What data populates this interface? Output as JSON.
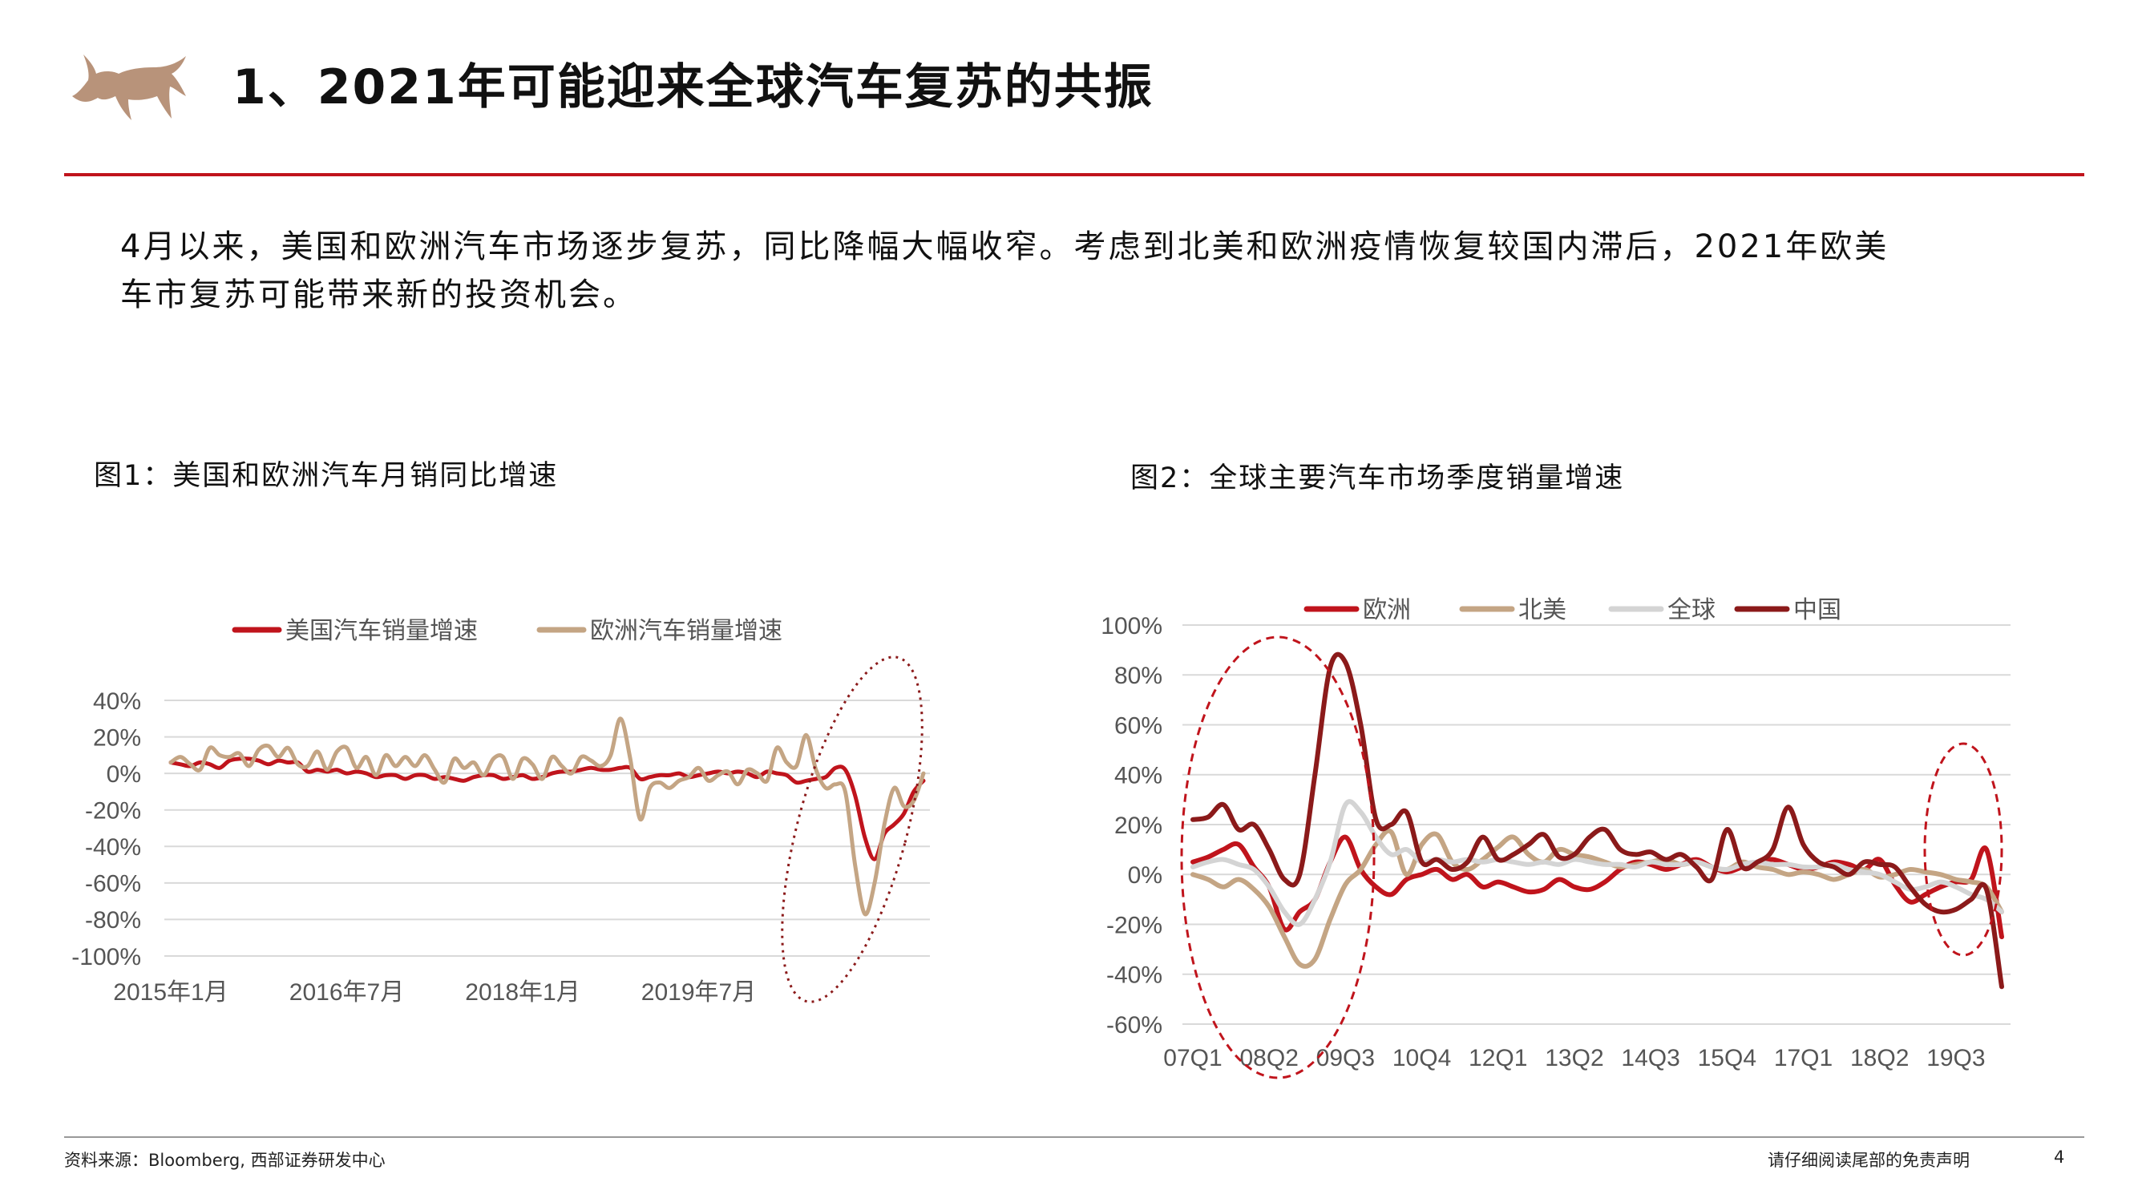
{
  "header": {
    "title": "1、2021年可能迎来全球汽车复苏的共振",
    "logo_color": "#b8937a"
  },
  "paragraph": {
    "line1": "4月以来，美国和欧洲汽车市场逐步复苏，同比降幅大幅收窄。考虑到北美和欧洲疫情恢复较国内滞后，2021年欧美",
    "line2": "车市复苏可能带来新的投资机会。"
  },
  "figure1": {
    "title": "图1：美国和欧洲汽车月销同比增速"
  },
  "figure2": {
    "title": "图2：全球主要汽车市场季度销量增速"
  },
  "footer": {
    "source": "资料来源：Bloomberg,  西部证券研发中心",
    "disclaimer": "请仔细阅读尾部的免责声明",
    "page_number": "4"
  },
  "colors": {
    "accent": "#c0141c",
    "gold": "#c4a584",
    "lightgray": "#d4d4d4",
    "darkred": "#8b1a1a"
  },
  "chart_data": [
    {
      "type": "line",
      "ylim": [
        -100,
        40
      ],
      "yticks": [
        40,
        20,
        0,
        -20,
        -40,
        -60,
        -80,
        -100
      ],
      "ytick_labels": [
        "40%",
        "20%",
        "0%",
        "-20%",
        "-40%",
        "-60%",
        "-80%",
        "-100%"
      ],
      "x_count": 78,
      "x_tick_labels": [
        {
          "index": 0,
          "label": "2015年1月"
        },
        {
          "index": 18,
          "label": "2016年7月"
        },
        {
          "index": 36,
          "label": "2018年1月"
        },
        {
          "index": 54,
          "label": "2019年7月"
        }
      ],
      "legend_position": "top",
      "grid": true,
      "series": [
        {
          "name": "美国汽车销量增速",
          "color": "#c0141c",
          "values": [
            6,
            5,
            4,
            6,
            5,
            3,
            7,
            8,
            8,
            7,
            5,
            7,
            6,
            6,
            1,
            2,
            1,
            2,
            0,
            1,
            0,
            -2,
            -1,
            -1,
            -3,
            -1,
            -1,
            -3,
            -2,
            -3,
            -4,
            -2,
            -1,
            -1,
            -3,
            -2,
            -1,
            -3,
            -2,
            0,
            1,
            1,
            2,
            3,
            2,
            2,
            3,
            3,
            -3,
            -2,
            -1,
            -1,
            0,
            -2,
            -1,
            0,
            1,
            0,
            1,
            0,
            -2,
            1,
            0,
            -1,
            -5,
            -4,
            -3,
            -2,
            3,
            2,
            -12,
            -35,
            -47,
            -33,
            -28,
            -22,
            -10,
            -4
          ]
        },
        {
          "name": "欧洲汽车销量增速",
          "color": "#c4a584",
          "values": [
            6,
            9,
            5,
            2,
            14,
            10,
            9,
            11,
            4,
            13,
            15,
            9,
            14,
            5,
            4,
            12,
            2,
            12,
            14,
            3,
            9,
            -1,
            10,
            4,
            9,
            4,
            10,
            2,
            -5,
            8,
            3,
            6,
            -1,
            8,
            9,
            -3,
            8,
            5,
            -3,
            9,
            4,
            0,
            9,
            7,
            4,
            10,
            30,
            8,
            -25,
            -8,
            -5,
            -8,
            -4,
            -2,
            3,
            -4,
            -1,
            1,
            -6,
            2,
            0,
            -4,
            14,
            6,
            4,
            21,
            2,
            -8,
            -6,
            -10,
            -50,
            -77,
            -60,
            -28,
            -8,
            -18,
            -15,
            0
          ]
        }
      ]
    },
    {
      "type": "line",
      "ylim": [
        -60,
        100
      ],
      "yticks": [
        100,
        80,
        60,
        40,
        20,
        0,
        -20,
        -40,
        -60
      ],
      "ytick_labels": [
        "100%",
        "80%",
        "60%",
        "40%",
        "20%",
        "0%",
        "-20%",
        "-40%",
        "-60%"
      ],
      "x_count": 54,
      "x_tick_labels": [
        {
          "index": 0,
          "label": "07Q1"
        },
        {
          "index": 5,
          "label": "08Q2"
        },
        {
          "index": 10,
          "label": "09Q3"
        },
        {
          "index": 15,
          "label": "10Q4"
        },
        {
          "index": 20,
          "label": "12Q1"
        },
        {
          "index": 25,
          "label": "13Q2"
        },
        {
          "index": 30,
          "label": "14Q3"
        },
        {
          "index": 35,
          "label": "15Q4"
        },
        {
          "index": 40,
          "label": "17Q1"
        },
        {
          "index": 45,
          "label": "18Q2"
        },
        {
          "index": 50,
          "label": "19Q3"
        }
      ],
      "legend_position": "top",
      "grid": true,
      "series": [
        {
          "name": "欧洲",
          "color": "#c0141c",
          "values": [
            5,
            7,
            10,
            12,
            3,
            -5,
            -22,
            -15,
            -10,
            5,
            15,
            2,
            -5,
            -8,
            -2,
            0,
            2,
            -2,
            0,
            -5,
            -3,
            -5,
            -7,
            -6,
            -2,
            -5,
            -6,
            -3,
            2,
            5,
            4,
            2,
            4,
            6,
            3,
            1,
            3,
            5,
            6,
            4,
            2,
            3,
            5,
            4,
            2,
            6,
            -4,
            -11,
            -8,
            -5,
            -3,
            -2,
            10,
            -25
          ]
        },
        {
          "name": "北美",
          "color": "#c4a584",
          "values": [
            0,
            -2,
            -5,
            -2,
            -6,
            -13,
            -25,
            -36,
            -34,
            -18,
            -4,
            2,
            12,
            17,
            0,
            12,
            16,
            5,
            2,
            6,
            11,
            15,
            8,
            5,
            10,
            8,
            7,
            5,
            3,
            4,
            5,
            6,
            4,
            5,
            3,
            2,
            5,
            3,
            2,
            0,
            1,
            0,
            -2,
            0,
            2,
            -1,
            0,
            2,
            1,
            0,
            -2,
            -3,
            -5,
            -15
          ]
        },
        {
          "name": "全球",
          "color": "#d4d4d4",
          "values": [
            3,
            5,
            6,
            4,
            2,
            -5,
            -15,
            -20,
            -10,
            5,
            28,
            25,
            15,
            8,
            10,
            5,
            6,
            5,
            6,
            5,
            6,
            5,
            4,
            5,
            4,
            6,
            5,
            4,
            4,
            3,
            5,
            4,
            4,
            5,
            3,
            2,
            4,
            5,
            4,
            4,
            3,
            3,
            4,
            2,
            1,
            0,
            -3,
            -6,
            -5,
            -3,
            -5,
            -8,
            -10,
            -15
          ]
        },
        {
          "name": "中国",
          "color": "#8b1a1a",
          "values": [
            22,
            23,
            28,
            18,
            20,
            10,
            -2,
            0,
            40,
            83,
            85,
            60,
            22,
            20,
            25,
            5,
            6,
            2,
            5,
            15,
            6,
            8,
            12,
            16,
            7,
            8,
            15,
            18,
            10,
            8,
            9,
            6,
            8,
            3,
            -2,
            18,
            3,
            5,
            10,
            27,
            12,
            5,
            3,
            0,
            5,
            4,
            3,
            -5,
            -12,
            -15,
            -14,
            -10,
            -6,
            -45
          ]
        }
      ]
    }
  ]
}
